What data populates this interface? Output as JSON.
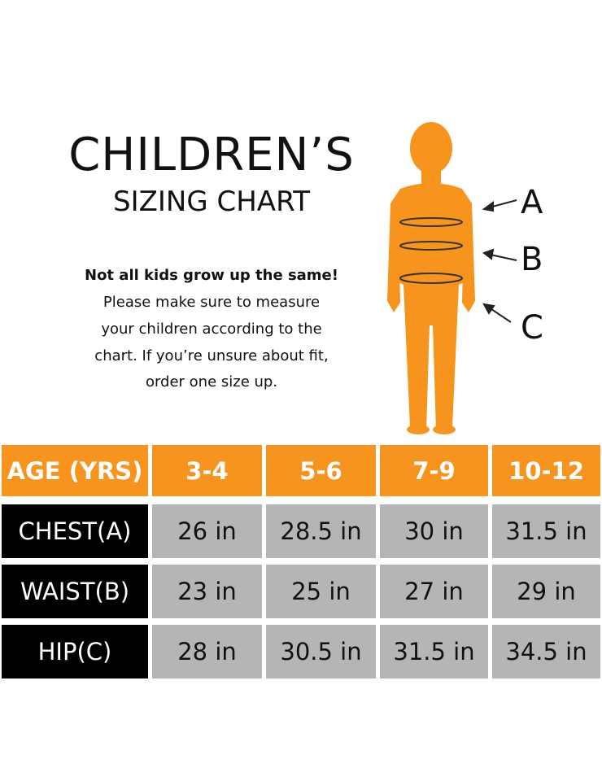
{
  "header": {
    "title": "CHILDREN’S",
    "subtitle": "SIZING CHART"
  },
  "intro": {
    "lead": "Not all kids grow up the same!",
    "lines": [
      "Please make sure to measure",
      "your children according to the",
      "chart. If you’re unsure about fit,",
      "order one size up."
    ]
  },
  "figure": {
    "labels": [
      "A",
      "B",
      "C"
    ]
  },
  "table": {
    "header": [
      "AGE (YRS)",
      "3-4",
      "5-6",
      "7-9",
      "10-12"
    ],
    "rows": [
      [
        "CHEST(A)",
        "26 in",
        "28.5 in",
        "30 in",
        "31.5 in"
      ],
      [
        "WAIST(B)",
        "23 in",
        "25 in",
        "27 in",
        "29 in"
      ],
      [
        "HIP(C)",
        "28 in",
        "30.5 in",
        "31.5 in",
        "34.5 in"
      ]
    ]
  }
}
